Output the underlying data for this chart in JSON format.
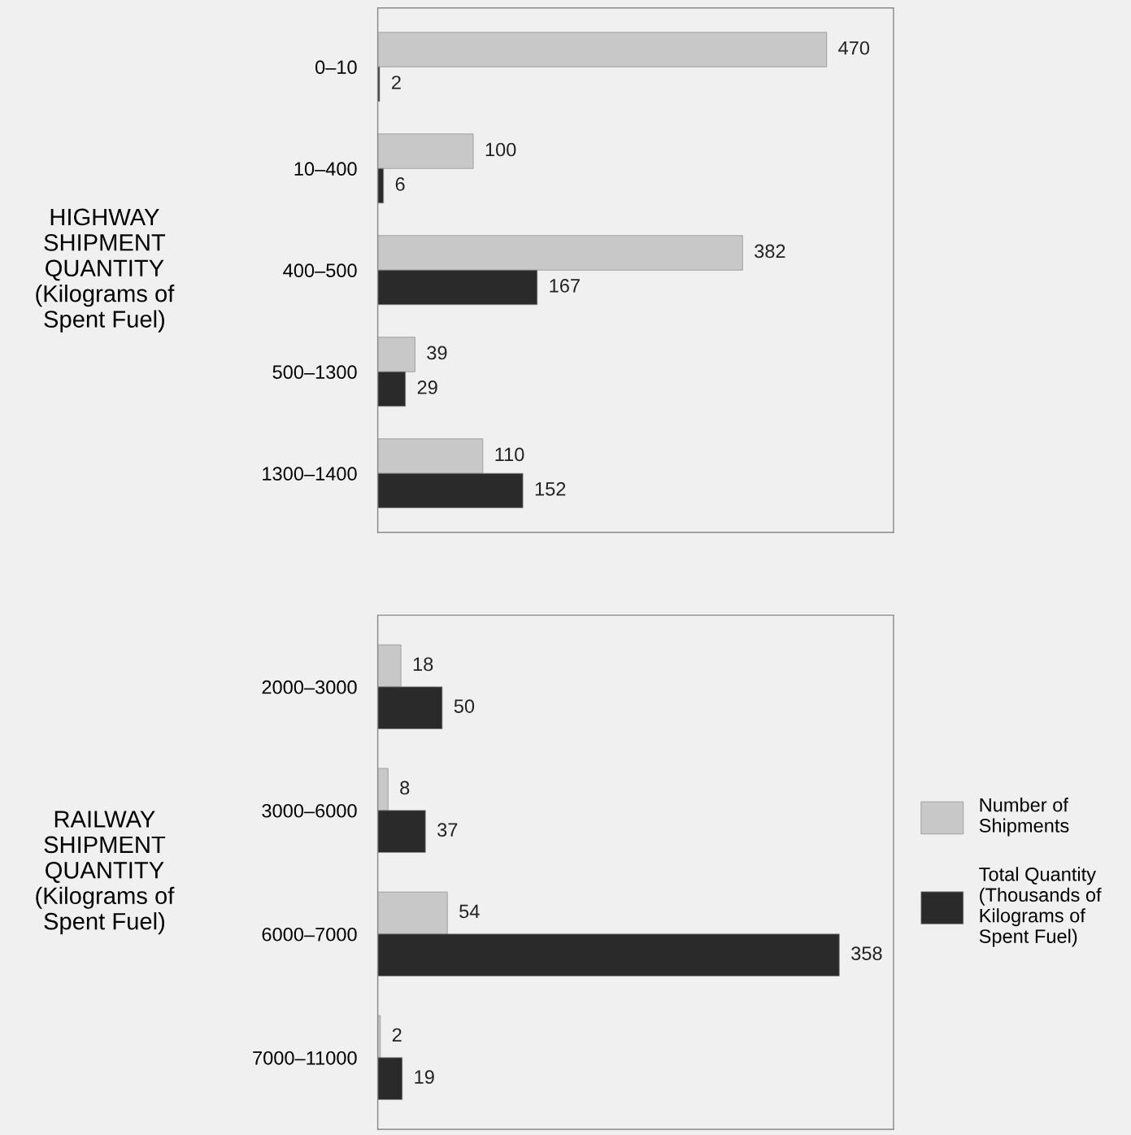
{
  "chart_data": [
    {
      "type": "bar",
      "orientation": "horizontal",
      "ylabel": "HIGHWAY\nSHIPMENT\nQUANTITY\n(Kilograms of\nSpent Fuel)",
      "categories": [
        "0–10",
        "10–400",
        "400–500",
        "500–1300",
        "1300–1400"
      ],
      "xlim": [
        0,
        540
      ],
      "tick_labels": "y",
      "data_labels": true,
      "legend": false,
      "series": [
        {
          "color": "#c8c8c8",
          "values": [
            470,
            100,
            382,
            39,
            110
          ]
        },
        {
          "color": "#2a2a2a",
          "values": [
            2,
            6,
            167,
            29,
            152
          ]
        }
      ]
    },
    {
      "type": "bar",
      "orientation": "horizontal",
      "ylabel": "RAILWAY\nSHIPMENT\nQUANTITY\n(Kilograms of\nSpent Fuel)",
      "categories": [
        "2000–3000",
        "3000–6000",
        "6000–7000",
        "7000–11000"
      ],
      "xlim": [
        0,
        400
      ],
      "tick_labels": "y",
      "data_labels": true,
      "legend": "right",
      "series": [
        {
          "name": "Number of\nShipments",
          "color": "#c8c8c8",
          "values": [
            18,
            8,
            54,
            2
          ]
        },
        {
          "name": "Total Quantity\n(Thousands of\nKilograms of\nSpent Fuel)",
          "color": "#2a2a2a",
          "values": [
            50,
            37,
            358,
            19
          ]
        }
      ]
    }
  ]
}
